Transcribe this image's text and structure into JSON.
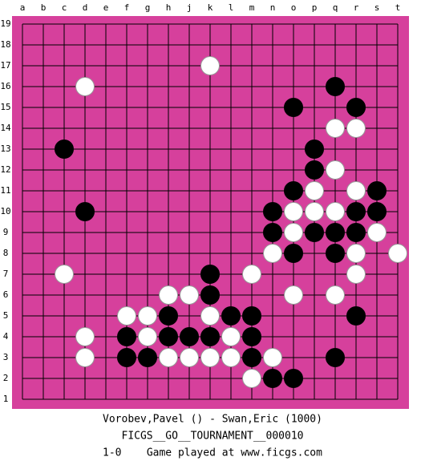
{
  "board": {
    "columns": [
      "a",
      "b",
      "c",
      "d",
      "e",
      "f",
      "g",
      "h",
      "j",
      "k",
      "l",
      "m",
      "n",
      "o",
      "p",
      "q",
      "r",
      "s",
      "t"
    ],
    "rows": [
      19,
      18,
      17,
      16,
      15,
      14,
      13,
      12,
      11,
      10,
      9,
      8,
      7,
      6,
      5,
      4,
      3,
      2,
      1
    ],
    "stones": [
      {
        "color": "white",
        "point": "k17"
      },
      {
        "color": "white",
        "point": "d16"
      },
      {
        "color": "black",
        "point": "q16"
      },
      {
        "color": "black",
        "point": "o15"
      },
      {
        "color": "black",
        "point": "r15"
      },
      {
        "color": "white",
        "point": "q14"
      },
      {
        "color": "white",
        "point": "r14"
      },
      {
        "color": "black",
        "point": "c13"
      },
      {
        "color": "black",
        "point": "p13"
      },
      {
        "color": "black",
        "point": "p12"
      },
      {
        "color": "white",
        "point": "q12"
      },
      {
        "color": "black",
        "point": "o11"
      },
      {
        "color": "white",
        "point": "p11"
      },
      {
        "color": "white",
        "point": "r11"
      },
      {
        "color": "black",
        "point": "s11"
      },
      {
        "color": "black",
        "point": "d10"
      },
      {
        "color": "black",
        "point": "n10"
      },
      {
        "color": "white",
        "point": "o10"
      },
      {
        "color": "white",
        "point": "p10"
      },
      {
        "color": "white",
        "point": "q10"
      },
      {
        "color": "black",
        "point": "r10"
      },
      {
        "color": "black",
        "point": "s10"
      },
      {
        "color": "black",
        "point": "n9"
      },
      {
        "color": "white",
        "point": "o9"
      },
      {
        "color": "black",
        "point": "p9"
      },
      {
        "color": "black",
        "point": "q9"
      },
      {
        "color": "black",
        "point": "r9"
      },
      {
        "color": "white",
        "point": "s9"
      },
      {
        "color": "white",
        "point": "n8"
      },
      {
        "color": "black",
        "point": "o8"
      },
      {
        "color": "black",
        "point": "q8"
      },
      {
        "color": "white",
        "point": "r8"
      },
      {
        "color": "white",
        "point": "t8"
      },
      {
        "color": "white",
        "point": "c7"
      },
      {
        "color": "black",
        "point": "k7"
      },
      {
        "color": "white",
        "point": "m7"
      },
      {
        "color": "white",
        "point": "r7"
      },
      {
        "color": "white",
        "point": "h6"
      },
      {
        "color": "white",
        "point": "j6"
      },
      {
        "color": "black",
        "point": "k6"
      },
      {
        "color": "white",
        "point": "o6"
      },
      {
        "color": "white",
        "point": "q6"
      },
      {
        "color": "white",
        "point": "f5"
      },
      {
        "color": "white",
        "point": "g5"
      },
      {
        "color": "black",
        "point": "h5"
      },
      {
        "color": "white",
        "point": "k5"
      },
      {
        "color": "black",
        "point": "l5"
      },
      {
        "color": "black",
        "point": "m5"
      },
      {
        "color": "black",
        "point": "r5"
      },
      {
        "color": "white",
        "point": "d4"
      },
      {
        "color": "black",
        "point": "f4"
      },
      {
        "color": "white",
        "point": "g4"
      },
      {
        "color": "black",
        "point": "h4"
      },
      {
        "color": "black",
        "point": "j4"
      },
      {
        "color": "black",
        "point": "k4"
      },
      {
        "color": "white",
        "point": "l4"
      },
      {
        "color": "black",
        "point": "m4"
      },
      {
        "color": "white",
        "point": "d3"
      },
      {
        "color": "black",
        "point": "f3"
      },
      {
        "color": "black",
        "point": "g3"
      },
      {
        "color": "white",
        "point": "h3"
      },
      {
        "color": "white",
        "point": "j3"
      },
      {
        "color": "white",
        "point": "k3"
      },
      {
        "color": "white",
        "point": "l3"
      },
      {
        "color": "black",
        "point": "m3"
      },
      {
        "color": "white",
        "point": "n3"
      },
      {
        "color": "black",
        "point": "q3"
      },
      {
        "color": "white",
        "point": "m2"
      },
      {
        "color": "black",
        "point": "n2"
      },
      {
        "color": "black",
        "point": "o2"
      }
    ]
  },
  "caption": {
    "players": "Vorobev,Pavel () - Swan,Eric (1000)",
    "event": "FICGS__GO__TOURNAMENT__000010",
    "result": "1-0    Game played at www.ficgs.com"
  }
}
